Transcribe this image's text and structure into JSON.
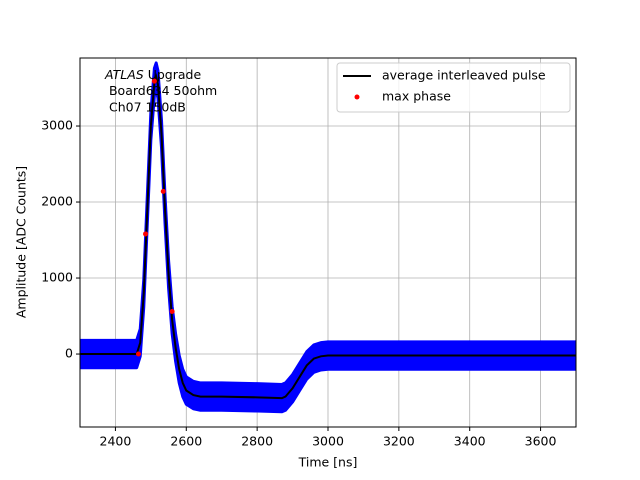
{
  "chart_data": {
    "type": "line",
    "xlabel": "Time [ns]",
    "ylabel": "Amplitude [ADC Counts]",
    "annotation": {
      "lines": [
        [
          "ATLAS",
          " Upgrade"
        ],
        " Board634 50ohm",
        " Ch07 150dB"
      ]
    },
    "x": [
      2300,
      2440,
      2460,
      2470,
      2480,
      2490,
      2500,
      2510,
      2515,
      2520,
      2530,
      2540,
      2550,
      2560,
      2570,
      2580,
      2590,
      2600,
      2620,
      2640,
      2700,
      2800,
      2870,
      2880,
      2900,
      2920,
      2940,
      2960,
      2980,
      3000,
      3200,
      3700
    ],
    "band": {
      "color": "#0000ff",
      "upper": [
        180,
        180,
        180,
        330,
        980,
        2080,
        3180,
        3760,
        3830,
        3730,
        3080,
        2080,
        1230,
        630,
        260,
        -20,
        -200,
        -300,
        -360,
        -380,
        -380,
        -390,
        -400,
        -380,
        -270,
        -120,
        30,
        120,
        150,
        160,
        160,
        160
      ],
      "lower": [
        -180,
        -180,
        -180,
        -30,
        620,
        1720,
        2820,
        3400,
        3470,
        3370,
        2720,
        1720,
        870,
        270,
        -100,
        -380,
        -560,
        -660,
        -720,
        -740,
        -740,
        -750,
        -760,
        -740,
        -630,
        -480,
        -330,
        -240,
        -210,
        -200,
        -200,
        -200
      ]
    },
    "series": [
      {
        "name": "average interleaved pulse",
        "color": "#000000",
        "values": [
          0,
          0,
          0,
          150,
          800,
          1900,
          3000,
          3580,
          3650,
          3550,
          2900,
          1900,
          1050,
          450,
          80,
          -200,
          -380,
          -480,
          -540,
          -560,
          -560,
          -570,
          -580,
          -560,
          -450,
          -300,
          -150,
          -60,
          -30,
          -20,
          -20,
          -20
        ]
      },
      {
        "name": "max phase",
        "color": "#ff0000",
        "type": "scatter",
        "x": [
          2465,
          2485,
          2510,
          2535,
          2560
        ],
        "values": [
          0,
          1580,
          3590,
          2140,
          560
        ]
      }
    ],
    "xlim": [
      2300,
      3700
    ],
    "ylim": [
      -960,
      3895
    ],
    "xticks": [
      2400,
      2600,
      2800,
      3000,
      3200,
      3400,
      3600
    ],
    "yticks": [
      0,
      1000,
      2000,
      3000
    ],
    "grid": true,
    "legend": "upper right"
  }
}
